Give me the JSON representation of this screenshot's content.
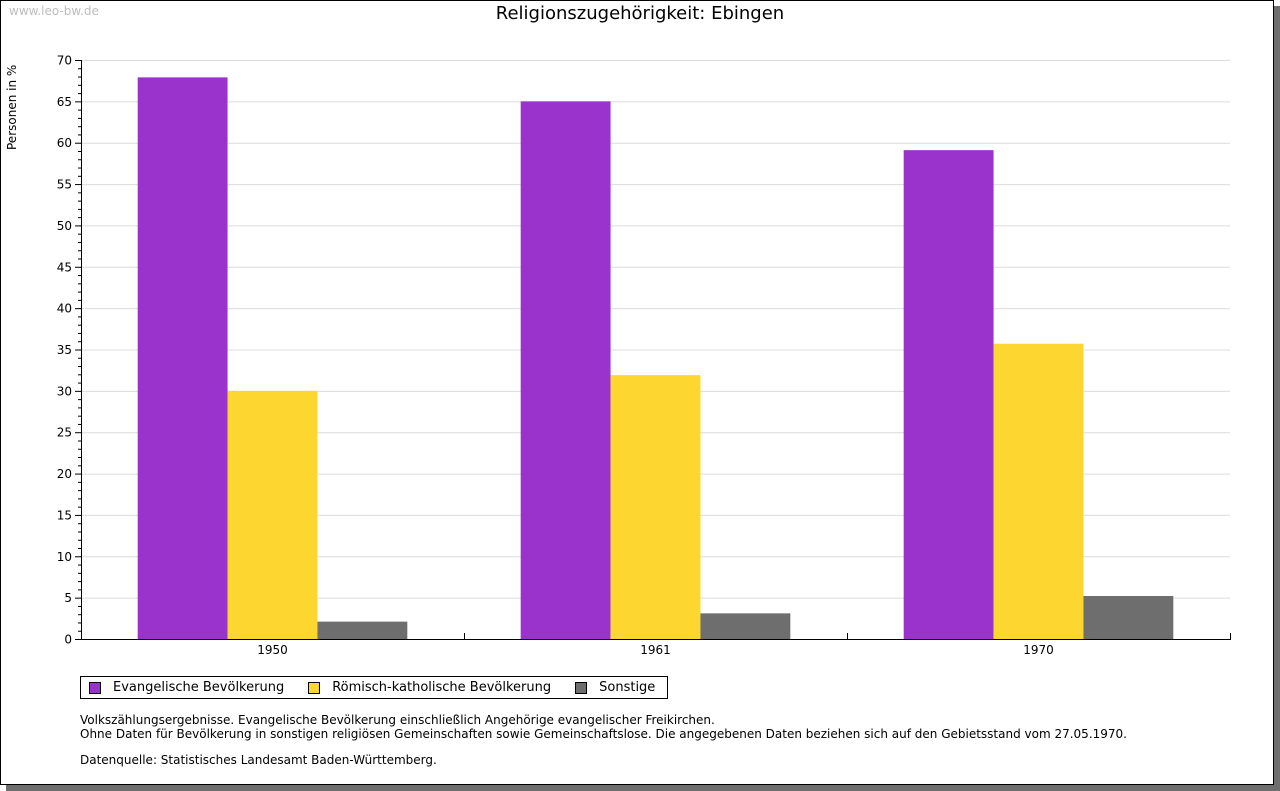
{
  "watermark": "www.leo-bw.de",
  "chart_data": {
    "type": "bar",
    "title": "Religionszugehörigkeit: Ebingen",
    "xlabel": "",
    "ylabel": "Personen in %",
    "ylim": [
      0,
      70
    ],
    "yticks": [
      0,
      5,
      10,
      15,
      20,
      25,
      30,
      35,
      40,
      45,
      50,
      55,
      60,
      65,
      70
    ],
    "grid": true,
    "legend_position": "bottom-left",
    "categories": [
      "1950",
      "1961",
      "1970"
    ],
    "series": [
      {
        "name": "Evangelische Bevölkerung",
        "color": "#9933cc",
        "values": [
          67.9,
          65.0,
          59.1
        ]
      },
      {
        "name": "Römisch-katholische Bevölkerung",
        "color": "#fdd72f",
        "values": [
          30.0,
          31.9,
          35.7
        ]
      },
      {
        "name": "Sonstige",
        "color": "#6e6e6e",
        "values": [
          2.1,
          3.1,
          5.2
        ]
      }
    ]
  },
  "notes": {
    "line1": "Volkszählungsergebnisse. Evangelische Bevölkerung einschließlich Angehörige evangelischer Freikirchen.",
    "line2": "Ohne Daten für Bevölkerung in sonstigen religiösen Gemeinschaften sowie Gemeinschaftslose. Die angegebenen Daten beziehen sich auf den Gebietsstand vom 27.05.1970.",
    "source": "Datenquelle: Statistisches Landesamt Baden-Württemberg."
  }
}
